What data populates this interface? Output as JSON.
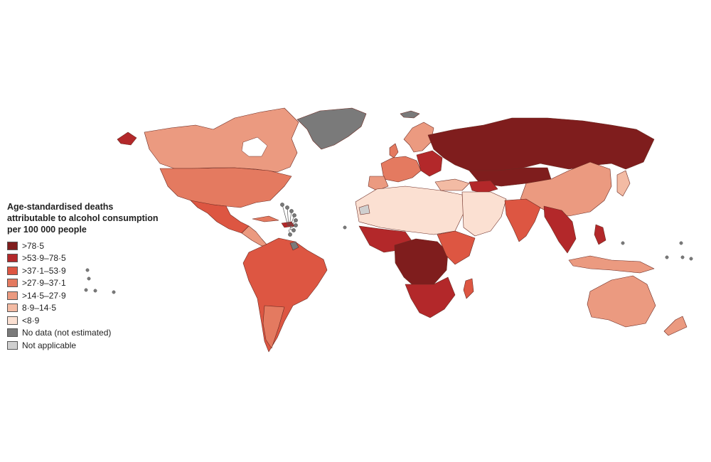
{
  "legend": {
    "title_lines": [
      "Age-standardised deaths",
      "attributable to alcohol consumption",
      "per 100 000 people"
    ],
    "items": [
      {
        "label": ">78·5",
        "color": "#7f1d1d"
      },
      {
        "label": ">53·9–78·5",
        "color": "#b3282a"
      },
      {
        "label": ">37·1–53·9",
        "color": "#dd5642"
      },
      {
        "label": ">27·9–37·1",
        "color": "#e47a60"
      },
      {
        "label": ">14·5–27·9",
        "color": "#eb9a80"
      },
      {
        "label": "8·9–14·5",
        "color": "#f3bba4"
      },
      {
        "label": "<8·9",
        "color": "#fbe0d2"
      },
      {
        "label": "No data (not estimated)",
        "color": "#7a7a7a"
      },
      {
        "label": "Not applicable",
        "color": "#cfcfcf"
      }
    ]
  }
}
